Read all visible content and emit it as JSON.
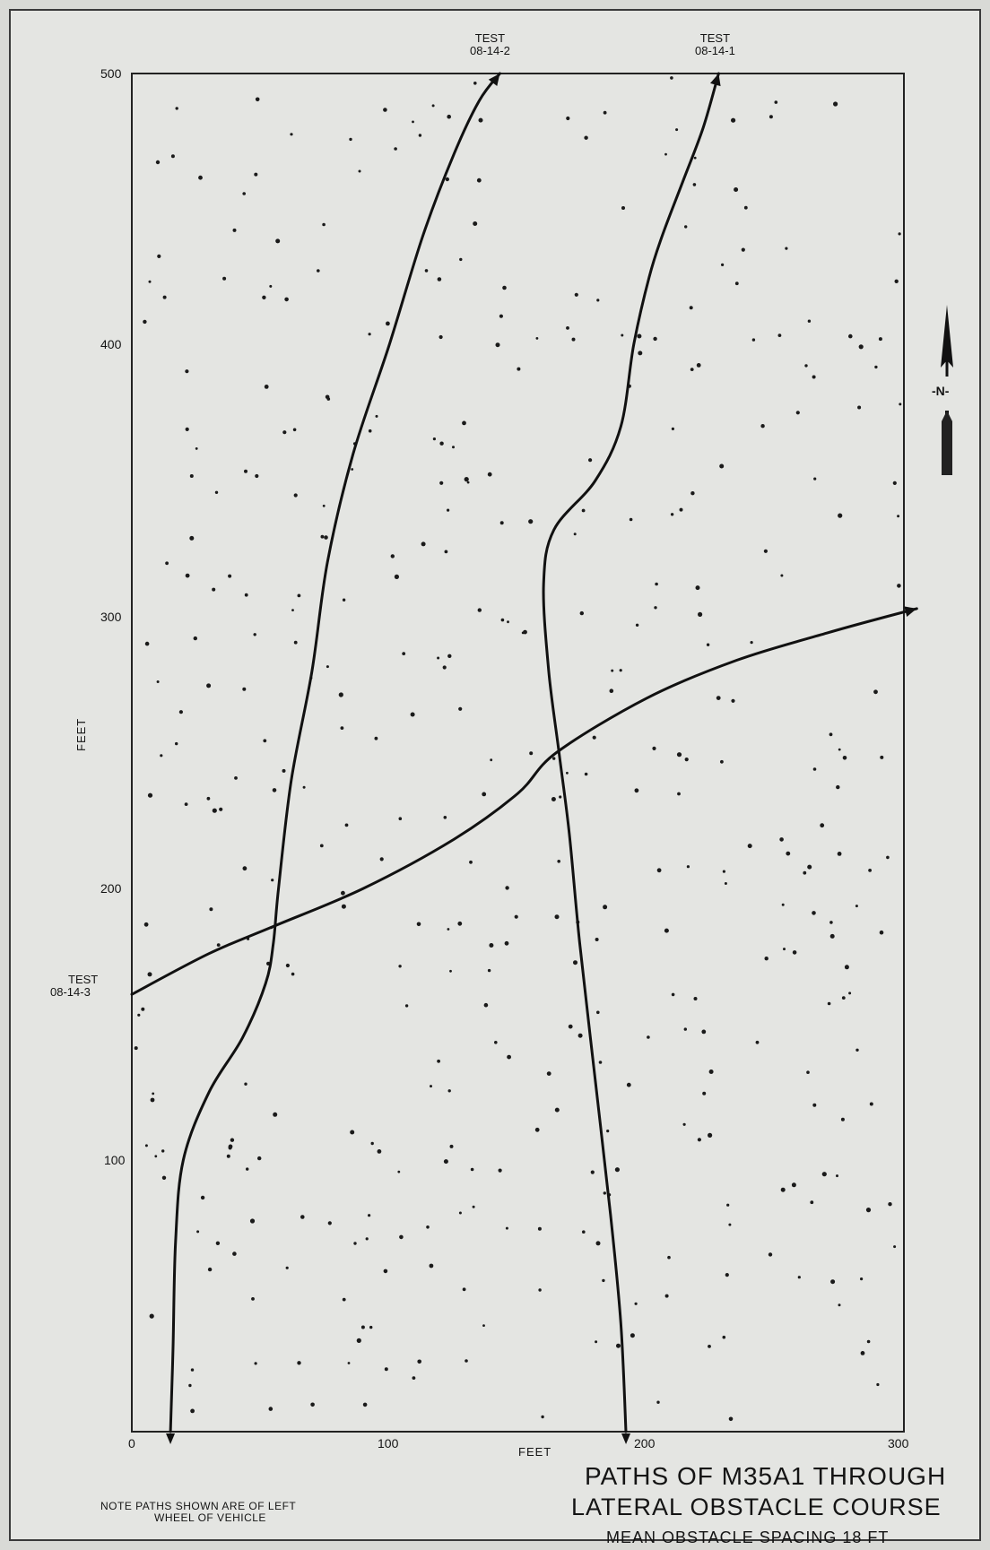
{
  "chart_data": {
    "type": "line",
    "title": "PATHS OF M35A1 THROUGH",
    "title_line2": "LATERAL OBSTACLE COURSE",
    "subtitle": "MEAN OBSTACLE SPACING 18 FT",
    "xlabel": "FEET",
    "ylabel": "FEET",
    "xlim": [
      0,
      300
    ],
    "ylim": [
      0,
      500
    ],
    "x_ticks": [
      "0",
      "100",
      "200",
      "300"
    ],
    "y_ticks": [
      "100",
      "200",
      "300",
      "400",
      "500"
    ],
    "grid": false,
    "north_arrow_label": "-N-",
    "note_line1": "NOTE  PATHS SHOWN ARE OF LEFT",
    "note_line2": "WHEEL OF VEHICLE",
    "series": [
      {
        "name": "TEST 08-14-2",
        "label_line1": "TEST",
        "label_line2": "08-14-2",
        "points": [
          [
            15,
            0
          ],
          [
            16,
            30
          ],
          [
            17,
            70
          ],
          [
            20,
            100
          ],
          [
            30,
            125
          ],
          [
            43,
            145
          ],
          [
            52,
            165
          ],
          [
            55,
            180
          ],
          [
            57,
            200
          ],
          [
            62,
            240
          ],
          [
            70,
            280
          ],
          [
            76,
            320
          ],
          [
            86,
            360
          ],
          [
            100,
            400
          ],
          [
            113,
            440
          ],
          [
            125,
            470
          ],
          [
            135,
            490
          ],
          [
            143,
            500
          ]
        ]
      },
      {
        "name": "TEST 08-14-1",
        "label_line1": "TEST",
        "label_line2": "08-14-1",
        "points": [
          [
            192,
            0
          ],
          [
            190,
            40
          ],
          [
            186,
            80
          ],
          [
            180,
            130
          ],
          [
            174,
            180
          ],
          [
            170,
            220
          ],
          [
            166,
            250
          ],
          [
            162,
            280
          ],
          [
            160,
            312
          ],
          [
            164,
            332
          ],
          [
            180,
            350
          ],
          [
            190,
            370
          ],
          [
            195,
            400
          ],
          [
            201,
            425
          ],
          [
            206,
            440
          ],
          [
            214,
            460
          ],
          [
            222,
            480
          ],
          [
            228,
            500
          ]
        ]
      },
      {
        "name": "TEST 08-14-3",
        "label_line1": "TEST",
        "label_line2": "08-14-3",
        "points": [
          [
            0,
            161
          ],
          [
            30,
            176
          ],
          [
            55,
            186
          ],
          [
            90,
            200
          ],
          [
            125,
            218
          ],
          [
            150,
            235
          ],
          [
            165,
            250
          ],
          [
            200,
            270
          ],
          [
            235,
            284
          ],
          [
            270,
            294
          ],
          [
            293,
            300
          ],
          [
            305,
            303
          ]
        ]
      }
    ],
    "obstacle_count": 420,
    "obstacle_color": "#1a1a1a"
  }
}
